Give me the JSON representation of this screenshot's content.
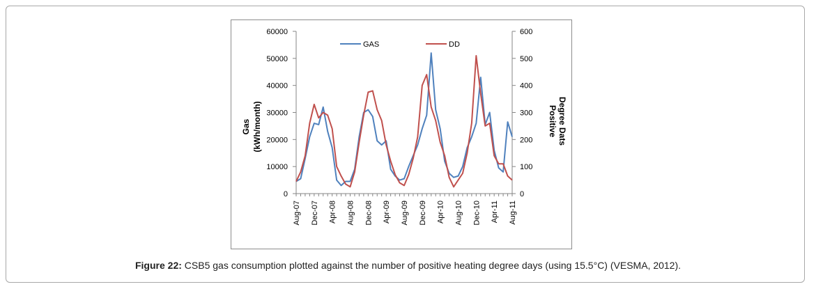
{
  "caption": {
    "label": "Figure 22:",
    "text": " CSB5 gas consumption plotted against the number of positive heating degree days (using 15.5°C) (VESMA, 2012)."
  },
  "chart_data": {
    "type": "line",
    "ylabel_left_line1": "Gas",
    "ylabel_left_line2": "(kWh/month)",
    "ylabel_right_line1": "Positive",
    "ylabel_right_line2": "Degree Dats",
    "ylim_left": [
      0,
      60000
    ],
    "ylim_right": [
      0,
      600
    ],
    "yticks_left": [
      "0",
      "10000",
      "20000",
      "30000",
      "40000",
      "50000",
      "60000"
    ],
    "yticks_right": [
      "0",
      "100",
      "200",
      "300",
      "400",
      "500",
      "600"
    ],
    "x_tick_labels": [
      "Aug-07",
      "Dec-07",
      "Apr-08",
      "Aug-08",
      "Dec-08",
      "Apr-09",
      "Aug-09",
      "Dec-09",
      "Apr-10",
      "Aug-10",
      "Dec-10",
      "Apr-11",
      "Aug-11"
    ],
    "legend_position": "top",
    "grid": false,
    "months": [
      "Aug-07",
      "Sep-07",
      "Oct-07",
      "Nov-07",
      "Dec-07",
      "Jan-08",
      "Feb-08",
      "Mar-08",
      "Apr-08",
      "May-08",
      "Jun-08",
      "Jul-08",
      "Aug-08",
      "Sep-08",
      "Oct-08",
      "Nov-08",
      "Dec-08",
      "Jan-09",
      "Feb-09",
      "Mar-09",
      "Apr-09",
      "May-09",
      "Jun-09",
      "Jul-09",
      "Aug-09",
      "Sep-09",
      "Oct-09",
      "Nov-09",
      "Dec-09",
      "Jan-10",
      "Feb-10",
      "Mar-10",
      "Apr-10",
      "May-10",
      "Jun-10",
      "Jul-10",
      "Aug-10",
      "Sep-10",
      "Oct-10",
      "Nov-10",
      "Dec-10",
      "Jan-11",
      "Feb-11",
      "Mar-11",
      "Apr-11",
      "May-11",
      "Jun-11",
      "Jul-11",
      "Aug-11"
    ],
    "series": [
      {
        "name": "GAS",
        "axis": "left",
        "color": "#4f81bd",
        "values": [
          4500,
          5500,
          13000,
          21000,
          26000,
          25500,
          32000,
          23000,
          17000,
          5000,
          3000,
          4500,
          4500,
          9000,
          21000,
          30000,
          31000,
          28500,
          19500,
          18000,
          19500,
          9000,
          6500,
          5000,
          5500,
          10000,
          14000,
          18000,
          24000,
          29000,
          52000,
          31000,
          24000,
          12000,
          7500,
          6000,
          6500,
          10000,
          17000,
          21000,
          26000,
          43000,
          25500,
          30000,
          16000,
          9500,
          8000,
          26500,
          21000
        ]
      },
      {
        "name": "DD",
        "axis": "right",
        "color": "#c0504d",
        "values": [
          45,
          80,
          140,
          260,
          330,
          280,
          300,
          290,
          240,
          100,
          65,
          35,
          25,
          80,
          190,
          290,
          375,
          380,
          310,
          270,
          180,
          120,
          70,
          40,
          30,
          70,
          130,
          210,
          400,
          440,
          320,
          270,
          190,
          140,
          60,
          25,
          50,
          75,
          150,
          260,
          510,
          370,
          250,
          260,
          140,
          110,
          110,
          65,
          50
        ]
      }
    ]
  }
}
